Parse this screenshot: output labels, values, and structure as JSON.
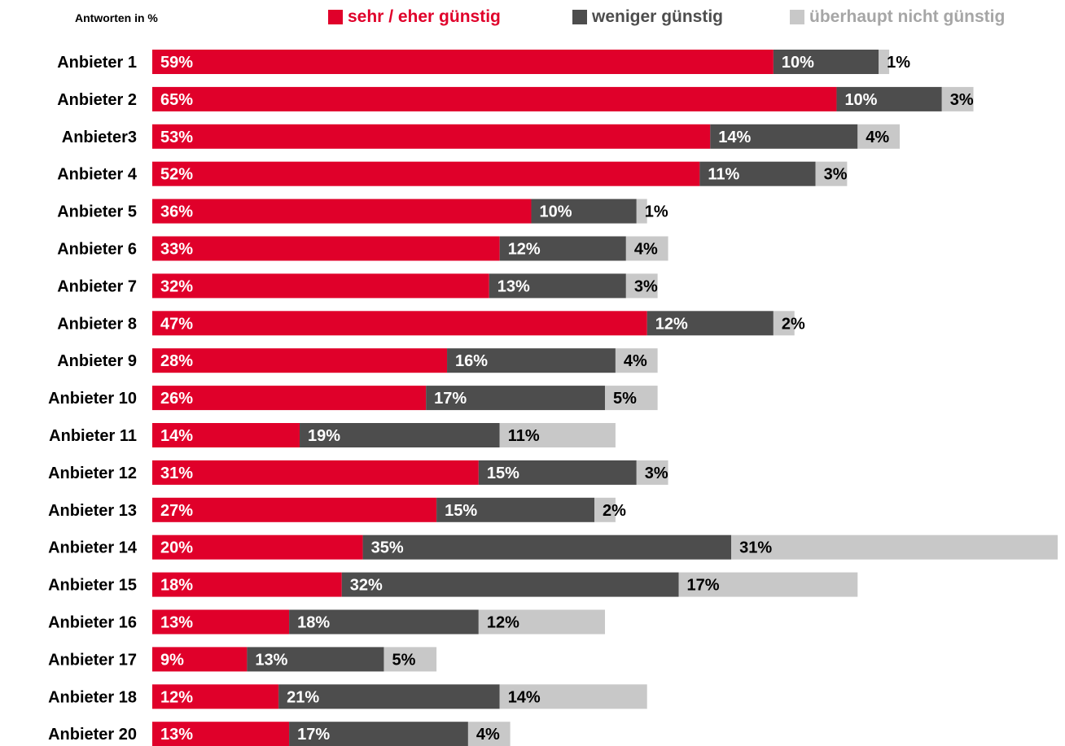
{
  "header": {
    "unit_label": "Antworten in %"
  },
  "legend": [
    {
      "label": "sehr / eher günstig",
      "color": "#e0002a",
      "text_color": "#e0002a"
    },
    {
      "label": "weniger günstig",
      "color": "#4d4d4d",
      "text_color": "#4d4d4d"
    },
    {
      "label": "überhaupt nicht günstig",
      "color": "#c8c8c8",
      "text_color": "#a6a6a6"
    }
  ],
  "chart_data": {
    "type": "bar",
    "orientation": "horizontal",
    "stacked": true,
    "categories": [
      "Anbieter 1",
      "Anbieter 2",
      "Anbieter3",
      "Anbieter 4",
      "Anbieter 5",
      "Anbieter 6",
      "Anbieter 7",
      "Anbieter 8",
      "Anbieter 9",
      "Anbieter 10",
      "Anbieter 11",
      "Anbieter 12",
      "Anbieter 13",
      "Anbieter 14",
      "Anbieter 15",
      "Anbieter 16",
      "Anbieter 17",
      "Anbieter 18",
      "Anbieter 20"
    ],
    "series": [
      {
        "name": "sehr / eher günstig",
        "color": "#e0002a",
        "values": [
          59,
          65,
          53,
          52,
          36,
          33,
          32,
          47,
          28,
          26,
          14,
          31,
          27,
          20,
          18,
          13,
          9,
          12,
          13
        ]
      },
      {
        "name": "weniger günstig",
        "color": "#4d4d4d",
        "values": [
          10,
          10,
          14,
          11,
          10,
          12,
          13,
          12,
          16,
          17,
          19,
          15,
          15,
          35,
          32,
          18,
          13,
          21,
          17
        ]
      },
      {
        "name": "überhaupt nicht günstig",
        "color": "#c8c8c8",
        "values": [
          1,
          3,
          4,
          3,
          1,
          4,
          3,
          2,
          4,
          5,
          11,
          3,
          2,
          31,
          17,
          12,
          5,
          14,
          4
        ]
      }
    ],
    "value_suffix": "%",
    "xlim": [
      0,
      86
    ],
    "ylabel": "",
    "xlabel": "",
    "grid": false,
    "legend_position": "top"
  }
}
